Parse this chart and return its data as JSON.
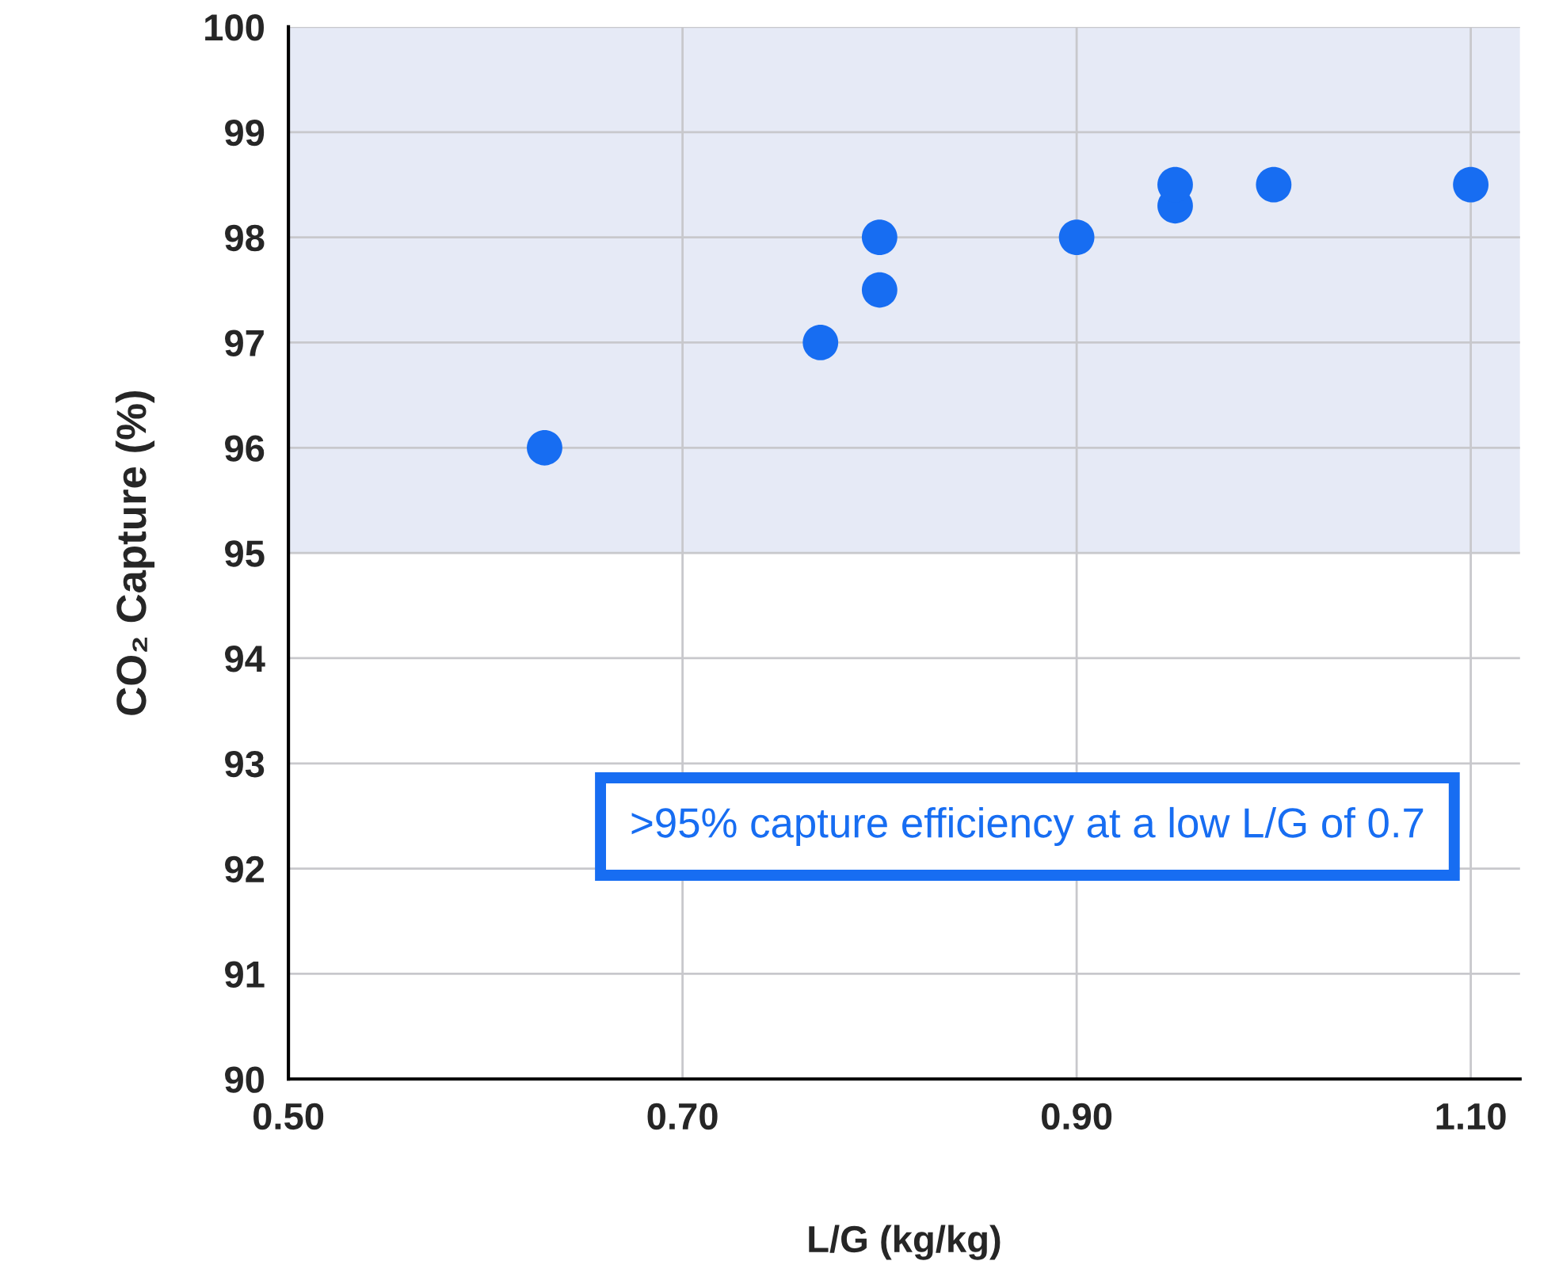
{
  "chart_data": {
    "type": "scatter",
    "xlabel": "L/G (kg/kg)",
    "ylabel": "CO₂ Capture (%)",
    "x": [
      0.63,
      0.77,
      0.8,
      0.8,
      0.9,
      0.95,
      0.95,
      1.0,
      1.1
    ],
    "values": [
      96,
      97,
      97.5,
      98,
      98,
      98.3,
      98.5,
      98.5,
      98.5
    ],
    "color": "#176df2",
    "marker": "circle",
    "xlim": [
      0.5,
      1.125
    ],
    "xticks": [
      {
        "value": 0.5,
        "label": "0.50"
      },
      {
        "value": 0.7,
        "label": "0.70"
      },
      {
        "value": 0.9,
        "label": "0.90"
      },
      {
        "value": 1.1,
        "label": "1.10"
      }
    ],
    "ylim": [
      90,
      100
    ],
    "yticks": [
      90,
      91,
      92,
      93,
      94,
      95,
      96,
      97,
      98,
      99,
      100
    ],
    "bands": [
      {
        "axis": "y",
        "from": 95,
        "to": 100,
        "color": "#e6eaf6"
      }
    ],
    "grid": true,
    "annotations": [
      ">95% capture efficiency at a low L/G of 0.7"
    ]
  }
}
